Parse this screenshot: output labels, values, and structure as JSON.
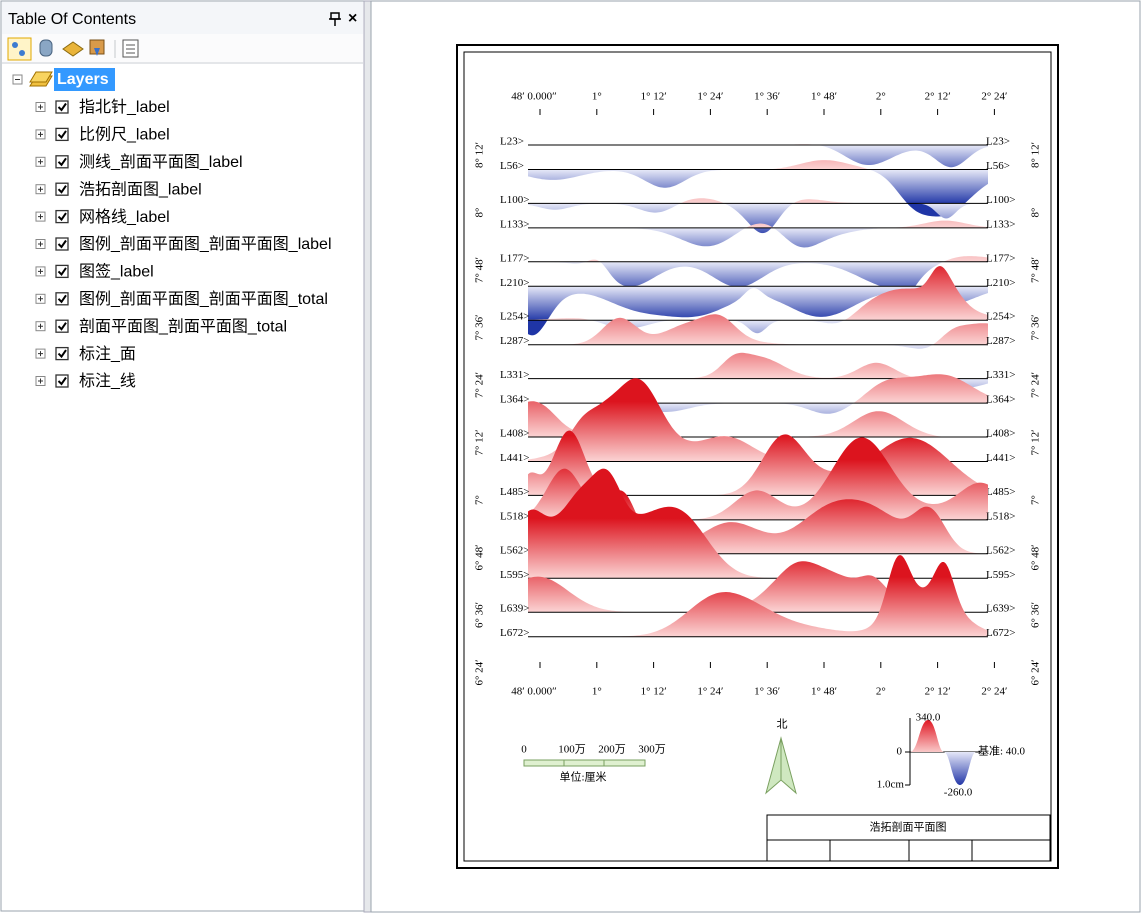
{
  "toc": {
    "title": "Table Of Contents",
    "close": "×",
    "root": "Layers",
    "items": [
      "指北针_label",
      "比例尺_label",
      "测线_剖面平面图_label",
      "浩拓剖面图_label",
      "网格线_label",
      "图例_剖面平面图_剖面平面图_label",
      "图签_label",
      "图例_剖面平面图_剖面平面图_total",
      "剖面平面图_剖面平面图_total",
      "标注_面",
      "标注_线"
    ]
  },
  "map": {
    "x_axis": [
      "48′ 0.000″",
      "1°",
      "1° 12′",
      "1° 24′",
      "1° 36′",
      "1° 48′",
      "2°",
      "2° 12′",
      "2° 24′"
    ],
    "y_axis": [
      "8° 12′",
      "8°",
      "7° 48′",
      "7° 36′",
      "7° 24′",
      "7° 12′",
      "7°",
      "6° 48′",
      "6° 36′",
      "6° 24′"
    ],
    "lines": [
      "L23>",
      "L56>",
      "L100>",
      "L133>",
      "L177>",
      "L210>",
      "L254>",
      "L287>",
      "L331>",
      "L364>",
      "L408>",
      "L441>",
      "L485>",
      "L518>",
      "L562>",
      "L595>",
      "L639>",
      "L672>"
    ],
    "scale_labels": [
      "0",
      "100万",
      "200万",
      "300万"
    ],
    "scale_unit": "单位:厘米",
    "north": "北",
    "legend": {
      "max": "340.0",
      "zero": "0",
      "base": "基准: 40.0",
      "unit": "1.0cm",
      "min": "-260.0"
    },
    "title_block": "浩拓剖面平面图"
  }
}
